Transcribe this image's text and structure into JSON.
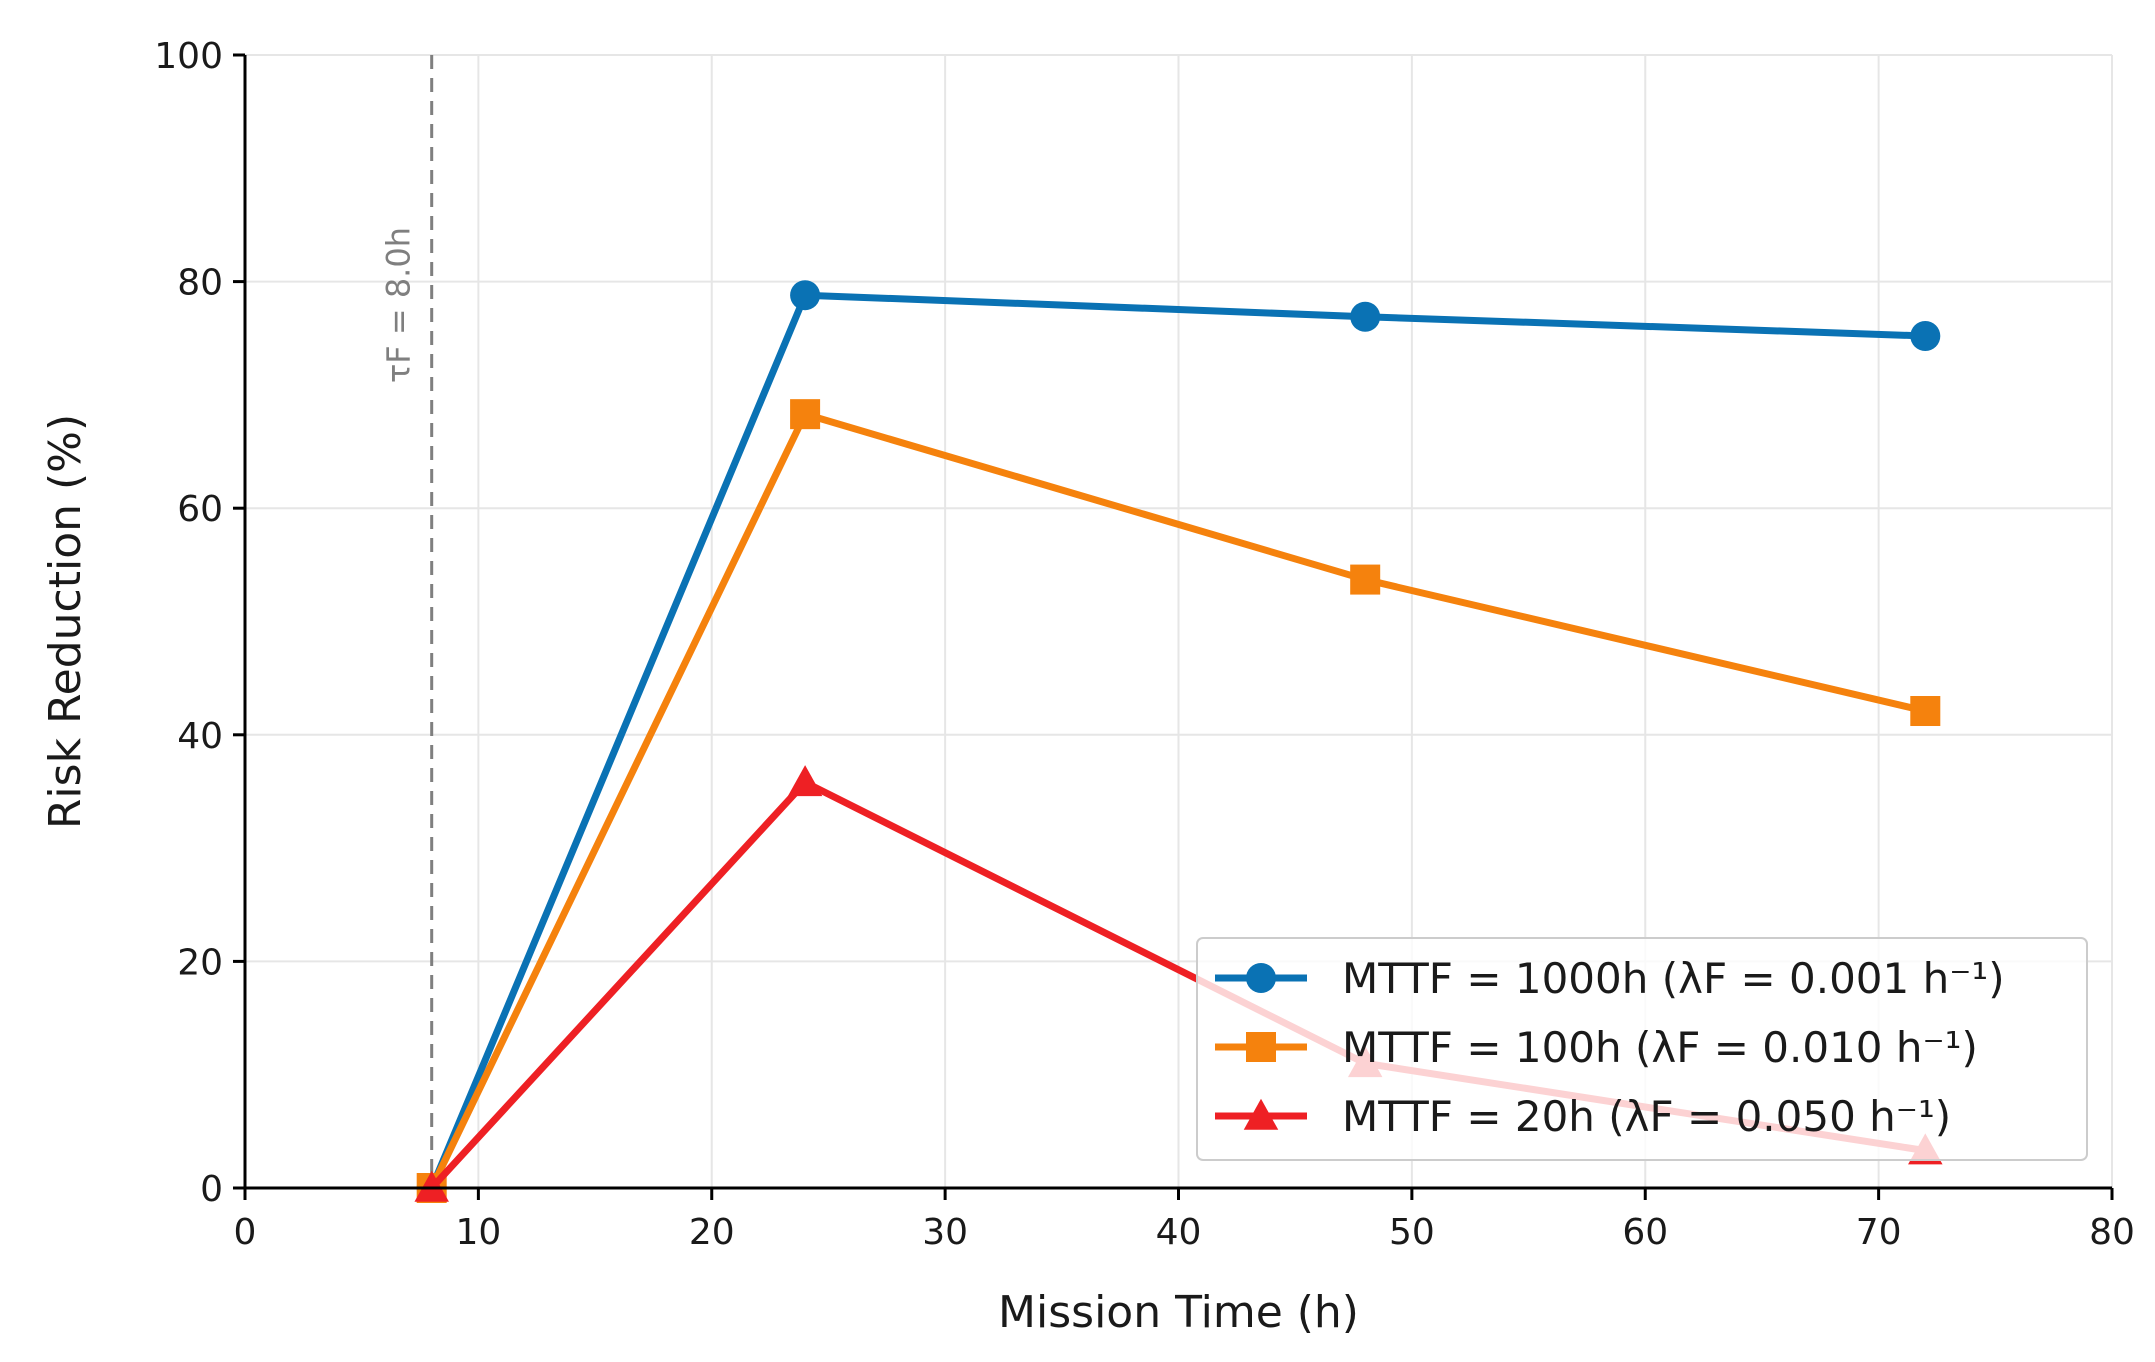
{
  "chart_data": {
    "type": "line",
    "title": "",
    "xlabel": "Mission Time (h)",
    "ylabel": "Risk Reduction (%)",
    "xlim": [
      0,
      80
    ],
    "ylim": [
      0,
      100
    ],
    "xticks": [
      0,
      10,
      20,
      30,
      40,
      50,
      60,
      70,
      80
    ],
    "yticks": [
      0,
      20,
      40,
      60,
      80,
      100
    ],
    "xtick_labels": [
      "0",
      "10",
      "20",
      "30",
      "40",
      "50",
      "60",
      "70",
      "80"
    ],
    "ytick_labels": [
      "0",
      "20",
      "40",
      "60",
      "80",
      "100"
    ],
    "grid": true,
    "legend_position": "bottom-right",
    "x": [
      8,
      24,
      48,
      72
    ],
    "series": [
      {
        "name": "MTTF = 1000h (λF = 0.001 h⁻¹)",
        "color": "#0a72b4",
        "marker": "circle",
        "values": [
          0,
          78.8,
          76.9,
          75.2
        ]
      },
      {
        "name": "MTTF = 100h (λF = 0.010 h⁻¹)",
        "color": "#f5820d",
        "marker": "square",
        "values": [
          0,
          68.3,
          53.7,
          42.1
        ]
      },
      {
        "name": "MTTF = 20h (λF = 0.050 h⁻¹)",
        "color": "#ee2024",
        "marker": "triangle",
        "values": [
          0,
          35.8,
          11.0,
          3.3
        ]
      }
    ],
    "annotations": [
      {
        "type": "vline",
        "x": 8,
        "label": "τF = 8.0h",
        "color": "#7f7f7f",
        "style": "dashed"
      }
    ]
  }
}
